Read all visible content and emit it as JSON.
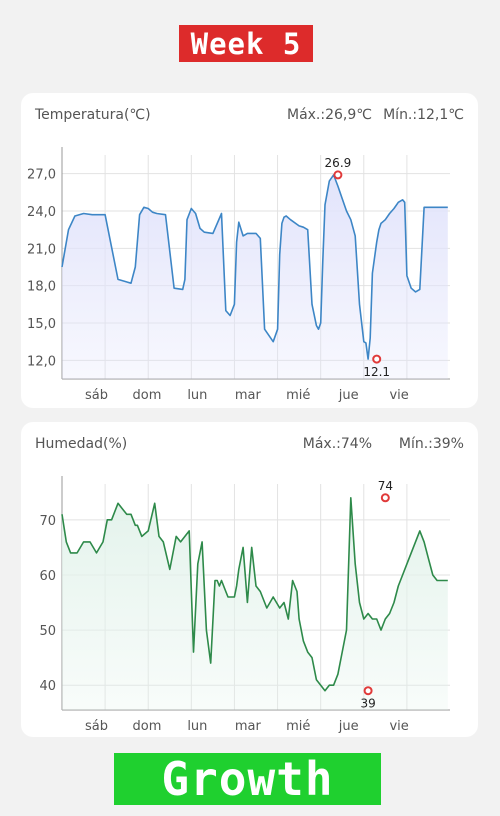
{
  "header": {
    "badge": "Week 5"
  },
  "footer": {
    "badge": "Growth"
  },
  "colors": {
    "temperature_line": "#3d86c6",
    "temperature_fill": "#e2e4fb",
    "humidity_line": "#2e8a4a",
    "humidity_fill": "#e4f3ec",
    "extreme_marker": "#e03a3a",
    "week_badge": "#dd2b2b",
    "growth_badge": "#1fd02f"
  },
  "chart_data": [
    {
      "type": "area",
      "title": "Temperatura(℃)",
      "max_label": "Máx.:26,9℃",
      "min_label": "Mín.:12,1℃",
      "xlabel": "",
      "ylabel": "",
      "categories": [
        "sáb",
        "dom",
        "lun",
        "mar",
        "mié",
        "jue",
        "vie"
      ],
      "y_ticks": [
        "27,0",
        "24,0",
        "21,0",
        "18,0",
        "15,0",
        "12,0"
      ],
      "ylim": [
        10.5,
        28.5
      ],
      "grid": true,
      "max_point": {
        "x": 6.4,
        "y": 26.9,
        "label": "26.9"
      },
      "min_point": {
        "x": 7.3,
        "y": 12.1,
        "label": "12.1"
      },
      "x": [
        0,
        0.15,
        0.3,
        0.5,
        0.7,
        1.0,
        1.3,
        1.6,
        1.7,
        1.8,
        1.9,
        2.0,
        2.1,
        2.2,
        2.4,
        2.6,
        2.8,
        2.85,
        2.9,
        3.0,
        3.1,
        3.2,
        3.3,
        3.5,
        3.7,
        3.8,
        3.9,
        4.0,
        4.05,
        4.1,
        4.2,
        4.3,
        4.5,
        4.6,
        4.7,
        4.9,
        5.0,
        5.05,
        5.1,
        5.15,
        5.2,
        5.3,
        5.5,
        5.6,
        5.7,
        5.8,
        5.9,
        5.95,
        6.0,
        6.05,
        6.1,
        6.2,
        6.3,
        6.4,
        6.5,
        6.6,
        6.7,
        6.8,
        6.9,
        7.0,
        7.05,
        7.1,
        7.15,
        7.2,
        7.3,
        7.35,
        7.4,
        7.5,
        7.6,
        7.7,
        7.8,
        7.9,
        7.95,
        8.0,
        8.1,
        8.2,
        8.3,
        8.4,
        8.5,
        8.55,
        8.6,
        8.7,
        8.8,
        8.9,
        8.95
      ],
      "values": [
        19.5,
        22.5,
        23.6,
        23.8,
        23.7,
        23.7,
        18.5,
        18.2,
        19.5,
        23.7,
        24.3,
        24.2,
        23.9,
        23.8,
        23.7,
        17.8,
        17.7,
        18.5,
        23.3,
        24.2,
        23.8,
        22.6,
        22.3,
        22.2,
        23.8,
        16.0,
        15.6,
        16.5,
        21.5,
        23.1,
        22.0,
        22.2,
        22.2,
        21.8,
        14.5,
        13.5,
        14.5,
        20.5,
        23.0,
        23.5,
        23.6,
        23.3,
        22.8,
        22.7,
        22.5,
        16.5,
        14.8,
        14.5,
        15.0,
        20.0,
        24.5,
        26.4,
        26.9,
        26.0,
        25.0,
        24.0,
        23.3,
        22.0,
        16.5,
        13.5,
        13.4,
        12.1,
        13.8,
        19.0,
        21.5,
        22.5,
        23.0,
        23.3,
        23.8,
        24.2,
        24.7,
        24.9,
        24.7,
        18.8,
        17.8,
        17.5,
        17.7,
        24.3,
        24.3,
        24.3,
        24.3,
        24.3,
        24.3,
        24.3,
        24.3
      ]
    },
    {
      "type": "area",
      "title": "Humedad(%)",
      "max_label": "Máx.:74%",
      "min_label": "Mín.:39%",
      "xlabel": "",
      "ylabel": "",
      "categories": [
        "sáb",
        "dom",
        "lun",
        "mar",
        "mié",
        "jue",
        "vie"
      ],
      "y_ticks": [
        "70",
        "60",
        "50",
        "40"
      ],
      "ylim": [
        35.5,
        76.5
      ],
      "grid": true,
      "max_point": {
        "x": 7.5,
        "y": 74,
        "label": "74"
      },
      "min_point": {
        "x": 7.1,
        "y": 39,
        "label": "39"
      },
      "x": [
        0,
        0.1,
        0.2,
        0.35,
        0.5,
        0.65,
        0.8,
        0.95,
        1.05,
        1.15,
        1.3,
        1.5,
        1.6,
        1.7,
        1.75,
        1.85,
        2.0,
        2.15,
        2.25,
        2.35,
        2.5,
        2.65,
        2.75,
        2.85,
        2.95,
        3.05,
        3.15,
        3.25,
        3.35,
        3.45,
        3.55,
        3.6,
        3.65,
        3.7,
        3.8,
        3.85,
        3.9,
        4.0,
        4.05,
        4.1,
        4.2,
        4.3,
        4.4,
        4.5,
        4.6,
        4.75,
        4.9,
        5.05,
        5.15,
        5.25,
        5.35,
        5.4,
        5.45,
        5.5,
        5.6,
        5.7,
        5.8,
        5.9,
        6.0,
        6.1,
        6.15,
        6.2,
        6.3,
        6.4,
        6.5,
        6.6,
        6.7,
        6.8,
        6.9,
        7.0,
        7.1,
        7.2,
        7.3,
        7.4,
        7.5,
        7.6,
        7.7,
        7.8,
        7.9,
        8.0,
        8.1,
        8.2,
        8.3,
        8.4,
        8.5,
        8.6,
        8.7,
        8.8,
        8.95
      ],
      "values": [
        71,
        66,
        64,
        64,
        66,
        66,
        64,
        66,
        70,
        70,
        73,
        71,
        71,
        69,
        69,
        67,
        68,
        73,
        67,
        66,
        61,
        67,
        66,
        67,
        68,
        46,
        62,
        66,
        50,
        44,
        59,
        59,
        58,
        59,
        57,
        56,
        56,
        56,
        58,
        61,
        65,
        55,
        65,
        58,
        57,
        54,
        56,
        54,
        55,
        52,
        59,
        58,
        57,
        52,
        48,
        46,
        45,
        41,
        40,
        39,
        39.5,
        40,
        40,
        42,
        46,
        50,
        74,
        62,
        55,
        52,
        53,
        52,
        52,
        50,
        52,
        53,
        55,
        58,
        60,
        62,
        64,
        66,
        68,
        66,
        63,
        60,
        59,
        59,
        59
      ]
    }
  ]
}
